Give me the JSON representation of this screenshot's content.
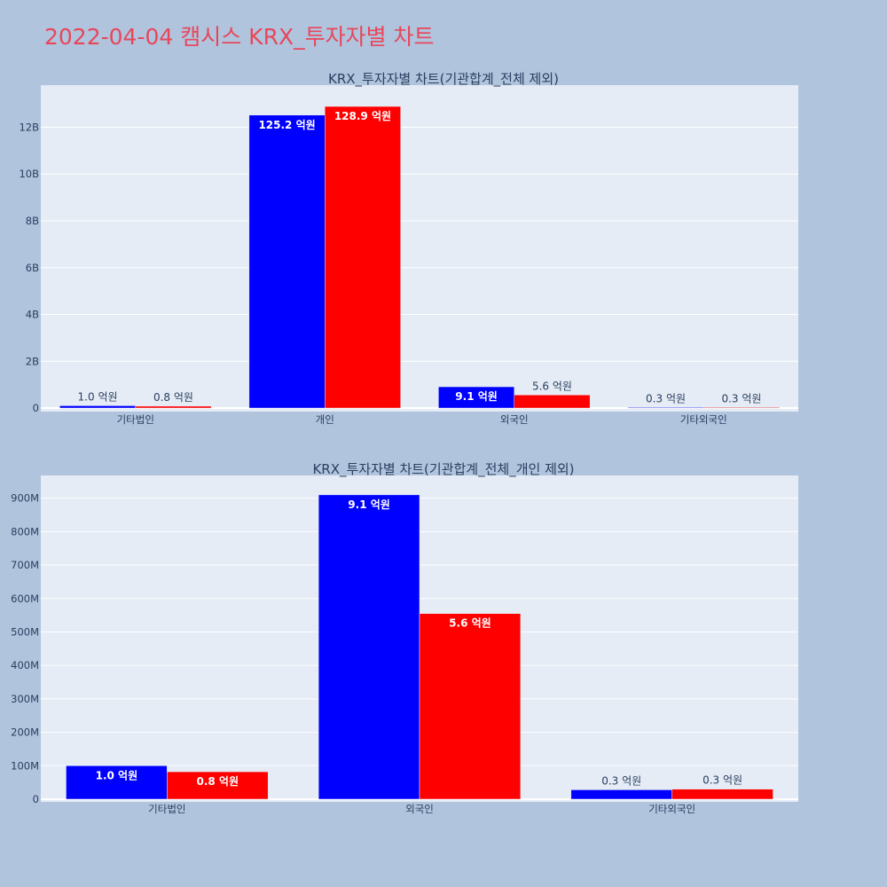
{
  "title": "2022-04-04 캠시스 KRX_투자자별 차트",
  "colors": {
    "series_a": "#0000ff",
    "series_b": "#ff0000",
    "plot_bg": "#e5ecf6",
    "page_bg": "#b0c4de",
    "title": "#e8475a"
  },
  "chart_data": [
    {
      "type": "bar",
      "title": "KRX_투자자별 차트(기관합계_전체 제외)",
      "categories": [
        "기타법인",
        "개인",
        "외국인",
        "기타외국인"
      ],
      "series": [
        {
          "values": [
            100000000,
            12520000000,
            910000000,
            30000000
          ],
          "labels": [
            "1.0 억원",
            "125.2 억원",
            "9.1 억원",
            "0.3 억원"
          ]
        },
        {
          "values": [
            80000000,
            12890000000,
            560000000,
            30000000
          ],
          "labels": [
            "0.8 억원",
            "128.9 억원",
            "5.6 억원",
            "0.3 억원"
          ]
        }
      ],
      "ylim": [
        -150000000,
        13800000000
      ],
      "yticks": [
        0,
        2000000000,
        4000000000,
        6000000000,
        8000000000,
        10000000000,
        12000000000
      ],
      "ytick_labels": [
        "0",
        "2B",
        "4B",
        "6B",
        "8B",
        "10B",
        "12B"
      ],
      "grid": true,
      "legend": "none"
    },
    {
      "type": "bar",
      "title": "KRX_투자자별 차트(기관합계_전체_개인 제외)",
      "categories": [
        "기타법인",
        "외국인",
        "기타외국인"
      ],
      "series": [
        {
          "values": [
            100000000,
            910000000,
            28000000
          ],
          "labels": [
            "1.0 억원",
            "9.1 억원",
            "0.3 억원"
          ]
        },
        {
          "values": [
            82000000,
            555000000,
            30000000
          ],
          "labels": [
            "0.8 억원",
            "5.6 억원",
            "0.3 억원"
          ]
        }
      ],
      "ylim": [
        -8000000,
        968000000
      ],
      "yticks": [
        0,
        100000000,
        200000000,
        300000000,
        400000000,
        500000000,
        600000000,
        700000000,
        800000000,
        900000000
      ],
      "ytick_labels": [
        "0",
        "100M",
        "200M",
        "300M",
        "400M",
        "500M",
        "600M",
        "700M",
        "800M",
        "900M"
      ],
      "grid": true,
      "legend": "none"
    }
  ]
}
